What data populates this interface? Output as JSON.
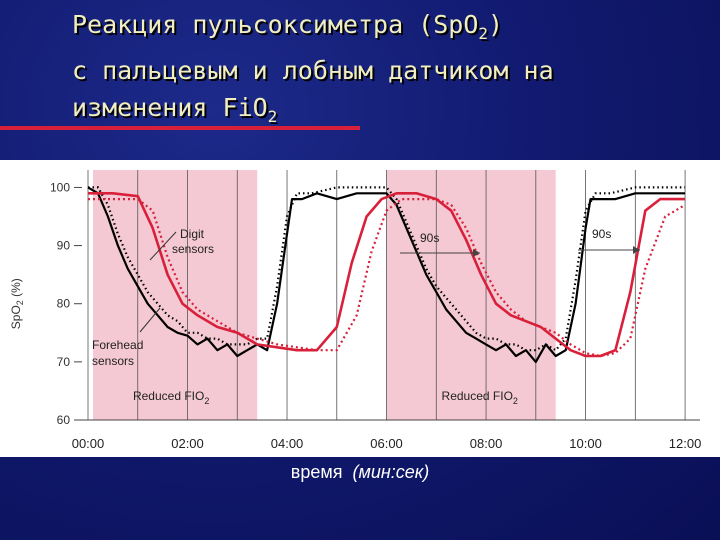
{
  "title": {
    "line1": "Реакция пульсоксиметра (SpO",
    "line1_sub": "2",
    "line1_end": ")",
    "line2": "с пальцевым и лобным датчиком на",
    "line3": "изменения FiO",
    "line3_sub": "2"
  },
  "x_axis_caption": {
    "main": "время",
    "unit": "(мин:сек)"
  },
  "colors": {
    "background": "#111a70",
    "title_text": "#f1eec0",
    "rule": "#d9203a",
    "shading": "#f4c9d3",
    "forehead_series": "#d9203a",
    "digit_series": "#000000"
  },
  "chart_data": {
    "type": "line",
    "ylabel": "SpO",
    "ylabel_sub": "2",
    "ylabel_unit": "(%)",
    "ylim": [
      60,
      103
    ],
    "xlim": [
      0,
      12.3
    ],
    "y_ticks": [
      "100",
      "90",
      "80",
      "70",
      "60"
    ],
    "x_ticks": [
      "00:00",
      "02:00",
      "04:00",
      "06:00",
      "08:00",
      "10:00",
      "12:00"
    ],
    "grid": "vertical",
    "shaded_regions": [
      {
        "label": "Reduced FIO",
        "label_sub": "2",
        "start": 0.1,
        "end": 3.4
      },
      {
        "label": "Reduced FIO",
        "label_sub": "2",
        "start": 6.0,
        "end": 9.4
      }
    ],
    "annotations": [
      {
        "text1": "Digit",
        "text2": "sensors"
      },
      {
        "text1": "Forehead",
        "text2": "sensors"
      },
      {
        "text": "90s"
      },
      {
        "text": "90s"
      }
    ],
    "series": [
      {
        "style": "black-solid",
        "x": [
          0.0,
          0.2,
          0.4,
          0.6,
          0.8,
          1.0,
          1.2,
          1.4,
          1.6,
          1.8,
          2.0,
          2.2,
          2.4,
          2.6,
          2.8,
          3.0,
          3.2,
          3.4,
          3.6,
          3.8,
          4.0,
          4.1,
          4.3,
          4.6,
          5.0,
          5.4,
          5.8,
          6.0,
          6.2,
          6.4,
          6.6,
          6.8,
          7.0,
          7.2,
          7.4,
          7.6,
          7.8,
          8.0,
          8.2,
          8.4,
          8.6,
          8.8,
          9.0,
          9.2,
          9.4,
          9.6,
          9.8,
          10.0,
          10.1,
          10.3,
          10.6,
          11.0,
          11.4,
          11.8,
          12.0
        ],
        "y": [
          100,
          99,
          95,
          90,
          86,
          83,
          80,
          78,
          76,
          75,
          74.5,
          73,
          74,
          72,
          73,
          71,
          72,
          73,
          72,
          80,
          92,
          98,
          98,
          99,
          98,
          99,
          99,
          99,
          97,
          93,
          89,
          85,
          82,
          79,
          77,
          75,
          74,
          73,
          72,
          73,
          71,
          72,
          70,
          73,
          71,
          72,
          80,
          93,
          98,
          98,
          98,
          99,
          99,
          99,
          99
        ]
      },
      {
        "style": "black-dotted",
        "x": [
          0.0,
          0.2,
          0.4,
          0.6,
          0.8,
          1.0,
          1.2,
          1.4,
          1.6,
          1.8,
          2.0,
          2.2,
          2.4,
          2.6,
          2.8,
          3.0,
          3.2,
          3.4,
          3.6,
          3.8,
          4.0,
          4.2,
          4.5,
          5.0,
          5.5,
          6.0,
          6.2,
          6.4,
          6.6,
          6.8,
          7.0,
          7.2,
          7.4,
          7.6,
          7.8,
          8.0,
          8.2,
          8.4,
          8.6,
          8.8,
          9.0,
          9.2,
          9.4,
          9.6,
          9.8,
          10.0,
          10.2,
          10.5,
          11.0,
          11.5,
          12.0
        ],
        "y": [
          100,
          100,
          97,
          92,
          88,
          85,
          82,
          80,
          78,
          77,
          75,
          75,
          74,
          74,
          73,
          73,
          73,
          74,
          74,
          83,
          95,
          99,
          99,
          100,
          100,
          100,
          98,
          94,
          90,
          86,
          83,
          81,
          79,
          77,
          75,
          74,
          74,
          73,
          73,
          72,
          72,
          73,
          72,
          74,
          84,
          96,
          99,
          99,
          100,
          100,
          100
        ]
      },
      {
        "style": "red-solid",
        "x": [
          0.0,
          0.5,
          1.0,
          1.3,
          1.6,
          1.9,
          2.2,
          2.6,
          3.0,
          3.4,
          3.8,
          4.2,
          4.6,
          5.0,
          5.3,
          5.6,
          5.9,
          6.2,
          6.6,
          7.0,
          7.3,
          7.6,
          7.9,
          8.2,
          8.5,
          8.8,
          9.1,
          9.4,
          9.7,
          10.0,
          10.3,
          10.6,
          10.9,
          11.2,
          11.5,
          11.8,
          12.0
        ],
        "y": [
          99,
          99,
          98.5,
          93,
          85,
          80,
          78,
          76,
          75,
          73,
          72.5,
          72,
          72,
          76,
          87,
          95,
          98,
          99,
          99,
          98,
          96,
          91,
          85,
          80,
          78,
          77,
          76,
          74,
          72,
          71,
          71,
          72,
          82,
          96,
          98,
          98,
          98
        ]
      },
      {
        "style": "red-dotted",
        "x": [
          0.0,
          0.5,
          1.0,
          1.3,
          1.6,
          1.9,
          2.2,
          2.6,
          3.0,
          3.4,
          3.8,
          4.2,
          4.6,
          5.0,
          5.4,
          5.7,
          6.0,
          6.3,
          6.6,
          7.0,
          7.3,
          7.6,
          7.9,
          8.2,
          8.5,
          8.8,
          9.1,
          9.4,
          9.7,
          10.0,
          10.3,
          10.6,
          10.9,
          11.2,
          11.6,
          12.0
        ],
        "y": [
          98,
          98,
          98,
          96,
          88,
          82,
          79,
          77,
          75,
          74,
          73,
          72.5,
          72,
          72,
          78,
          89,
          96,
          98,
          98,
          98,
          97,
          93,
          87,
          82,
          79,
          77,
          76,
          75,
          73,
          71.5,
          71,
          71.5,
          74,
          86,
          95,
          97
        ]
      }
    ]
  }
}
